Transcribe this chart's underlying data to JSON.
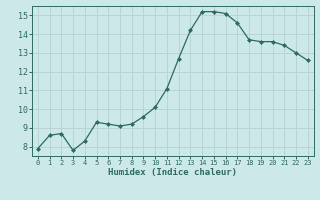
{
  "x": [
    0,
    1,
    2,
    3,
    4,
    5,
    6,
    7,
    8,
    9,
    10,
    11,
    12,
    13,
    14,
    15,
    16,
    17,
    18,
    19,
    20,
    21,
    22,
    23
  ],
  "y": [
    7.9,
    8.6,
    8.7,
    7.8,
    8.3,
    9.3,
    9.2,
    9.1,
    9.2,
    9.6,
    10.1,
    11.1,
    12.7,
    14.2,
    15.2,
    15.2,
    15.1,
    14.6,
    13.7,
    13.6,
    13.6,
    13.4,
    13.0,
    12.6
  ],
  "line_color": "#2e6b5e",
  "marker": "D",
  "marker_size": 2.0,
  "bg_color": "#cce8e8",
  "grid_color": "#b8d4d4",
  "xlabel": "Humidex (Indice chaleur)",
  "ylim": [
    7.5,
    15.5
  ],
  "xlim": [
    -0.5,
    23.5
  ],
  "yticks": [
    8,
    9,
    10,
    11,
    12,
    13,
    14,
    15
  ],
  "xticks": [
    0,
    1,
    2,
    3,
    4,
    5,
    6,
    7,
    8,
    9,
    10,
    11,
    12,
    13,
    14,
    15,
    16,
    17,
    18,
    19,
    20,
    21,
    22,
    23
  ],
  "tick_color": "#2e6b5e",
  "label_color": "#2e6b5e",
  "xtick_fontsize": 5.0,
  "ytick_fontsize": 6.0,
  "xlabel_fontsize": 6.5
}
